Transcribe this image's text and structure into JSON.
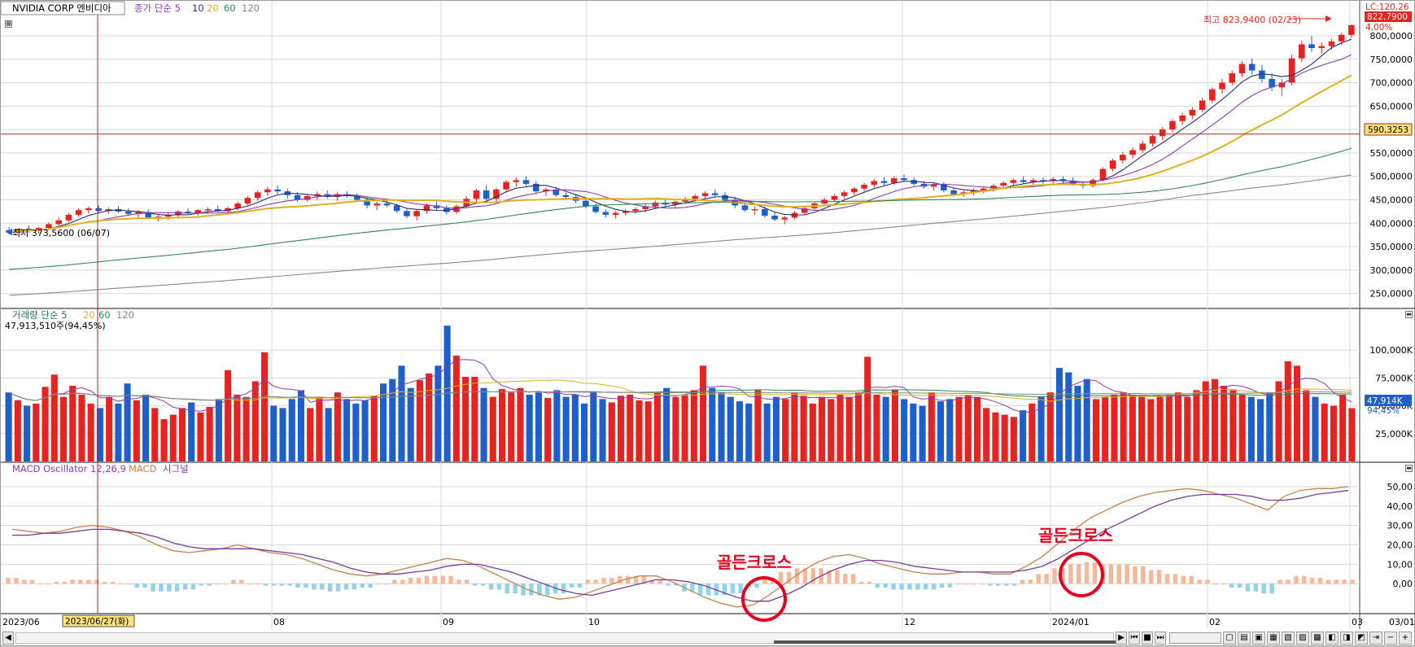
{
  "colors": {
    "up": "#e8231f",
    "down": "#1e5fd0",
    "ma5": "#2a2e6e",
    "ma10": "#8b3db0",
    "ma20": "#e0b020",
    "ma60": "#2e8b57",
    "ma120": "#888888",
    "osc_pos": "#f5b89a",
    "osc_neg": "#8fd3ee",
    "macd": "#c8824a",
    "signal": "#7a3a9a",
    "annotation": "#e8001c",
    "grid": "#d8d8d8",
    "crosshair": "#b22222",
    "hline": "#a52a2a"
  },
  "price_legend": {
    "title": "NVIDIA CORP  엔비디아",
    "ma_label": "종가 단순 5",
    "p10": "10",
    "p20": "20",
    "p60": "60",
    "p120": "120"
  },
  "volume_legend": {
    "title": "거래량 단순 5",
    "p20": "20",
    "p60": "60",
    "p120": "120",
    "info": "47,913,510주(94,45%)"
  },
  "macd_legend": {
    "title": "MACD Oscillator 12,26,9",
    "macd": "MACD",
    "signal": "시그널"
  },
  "price_axis": {
    "ticks": [
      "800,0000",
      "750,0000",
      "700,0000",
      "650,0000",
      "600,0000",
      "550,0000",
      "500,0000",
      "450,0000",
      "400,0000",
      "350,0000",
      "300,0000",
      "250,0000"
    ],
    "lc": "LC:120,26",
    "current": "822,7900",
    "pct": "4,00%",
    "hline_value": "590,3253"
  },
  "volume_axis": {
    "ticks": [
      "100,000K",
      "75,000K",
      "50,000K",
      "25,000K"
    ],
    "current": "47,914K",
    "pct": "94,45%"
  },
  "macd_axis": {
    "ticks": [
      "50,00",
      "40,00",
      "30,00",
      "20,00",
      "10,00",
      "0,00"
    ]
  },
  "annotations": {
    "high": "최고 823,9400 (02/23)",
    "low": "최저 373,5600 (06/07)",
    "golden1": "골든크로스",
    "golden2": "골든크로스"
  },
  "x_axis": {
    "labels": [
      "2023/06",
      "08",
      "09",
      "10",
      "12",
      "2024/01",
      "02",
      "03",
      "03/01"
    ],
    "crosshair_label": "2023/06/27(화)"
  },
  "chart_data": [
    {
      "type": "candlestick",
      "title": "NVIDIA CORP  엔비디아",
      "ylim": [
        225,
        840
      ],
      "moving_averages": [
        "5",
        "10",
        "20",
        "60",
        "120"
      ],
      "highest": {
        "value": 823.94,
        "date": "02/23"
      },
      "lowest": {
        "value": 373.56,
        "date": "06/07"
      },
      "ohlc": [
        [
          385,
          392,
          376,
          380
        ],
        [
          380,
          390,
          378,
          388
        ],
        [
          388,
          395,
          380,
          384
        ],
        [
          384,
          392,
          378,
          390
        ],
        [
          390,
          402,
          386,
          398
        ],
        [
          398,
          412,
          395,
          406
        ],
        [
          406,
          422,
          402,
          418
        ],
        [
          418,
          432,
          414,
          428
        ],
        [
          428,
          436,
          420,
          432
        ],
        [
          432,
          438,
          424,
          426
        ],
        [
          426,
          434,
          420,
          430
        ],
        [
          430,
          436,
          422,
          425
        ],
        [
          425,
          432,
          416,
          420
        ],
        [
          420,
          428,
          412,
          424
        ],
        [
          424,
          430,
          408,
          410
        ],
        [
          410,
          418,
          404,
          414
        ],
        [
          414,
          422,
          408,
          418
        ],
        [
          418,
          428,
          414,
          425
        ],
        [
          425,
          432,
          418,
          422
        ],
        [
          422,
          430,
          416,
          428
        ],
        [
          428,
          434,
          420,
          430
        ],
        [
          430,
          438,
          424,
          426
        ],
        [
          426,
          436,
          420,
          432
        ],
        [
          432,
          446,
          428,
          442
        ],
        [
          442,
          458,
          438,
          454
        ],
        [
          454,
          470,
          448,
          466
        ],
        [
          466,
          478,
          458,
          472
        ],
        [
          472,
          480,
          462,
          468
        ],
        [
          468,
          474,
          452,
          460
        ],
        [
          460,
          466,
          446,
          450
        ],
        [
          450,
          462,
          446,
          458
        ],
        [
          458,
          468,
          450,
          462
        ],
        [
          462,
          470,
          452,
          456
        ],
        [
          456,
          466,
          448,
          462
        ],
        [
          462,
          468,
          454,
          458
        ],
        [
          458,
          464,
          446,
          450
        ],
        [
          450,
          456,
          432,
          438
        ],
        [
          438,
          446,
          428,
          442
        ],
        [
          442,
          450,
          434,
          438
        ],
        [
          438,
          442,
          422,
          426
        ],
        [
          426,
          432,
          410,
          415
        ],
        [
          415,
          430,
          406,
          426
        ],
        [
          426,
          442,
          420,
          438
        ],
        [
          438,
          446,
          426,
          432
        ],
        [
          432,
          438,
          418,
          424
        ],
        [
          424,
          440,
          420,
          436
        ],
        [
          436,
          458,
          432,
          452
        ],
        [
          452,
          474,
          446,
          470
        ],
        [
          470,
          482,
          448,
          452
        ],
        [
          452,
          476,
          446,
          472
        ],
        [
          472,
          492,
          466,
          488
        ],
        [
          488,
          498,
          478,
          492
        ],
        [
          492,
          500,
          480,
          484
        ],
        [
          484,
          490,
          462,
          468
        ],
        [
          468,
          476,
          458,
          472
        ],
        [
          472,
          478,
          456,
          460
        ],
        [
          460,
          466,
          450,
          456
        ],
        [
          456,
          462,
          442,
          448
        ],
        [
          448,
          452,
          432,
          436
        ],
        [
          436,
          442,
          420,
          424
        ],
        [
          424,
          430,
          412,
          418
        ],
        [
          418,
          426,
          410,
          422
        ],
        [
          422,
          430,
          416,
          426
        ],
        [
          426,
          434,
          420,
          430
        ],
        [
          430,
          440,
          424,
          436
        ],
        [
          436,
          448,
          430,
          444
        ],
        [
          444,
          450,
          436,
          440
        ],
        [
          440,
          448,
          432,
          446
        ],
        [
          446,
          456,
          440,
          452
        ],
        [
          452,
          462,
          446,
          458
        ],
        [
          458,
          468,
          452,
          464
        ],
        [
          464,
          472,
          456,
          460
        ],
        [
          460,
          466,
          446,
          450
        ],
        [
          450,
          456,
          432,
          438
        ],
        [
          438,
          444,
          424,
          428
        ],
        [
          428,
          436,
          418,
          430
        ],
        [
          430,
          436,
          412,
          416
        ],
        [
          416,
          424,
          404,
          408
        ],
        [
          408,
          416,
          398,
          412
        ],
        [
          412,
          426,
          408,
          422
        ],
        [
          422,
          436,
          418,
          432
        ],
        [
          432,
          446,
          428,
          442
        ],
        [
          442,
          454,
          438,
          450
        ],
        [
          450,
          462,
          446,
          458
        ],
        [
          458,
          470,
          452,
          466
        ],
        [
          466,
          478,
          460,
          474
        ],
        [
          474,
          486,
          468,
          482
        ],
        [
          482,
          494,
          476,
          490
        ],
        [
          490,
          498,
          480,
          486
        ],
        [
          486,
          500,
          482,
          496
        ],
        [
          496,
          504,
          488,
          492
        ],
        [
          492,
          498,
          480,
          484
        ],
        [
          484,
          490,
          474,
          478
        ],
        [
          478,
          486,
          470,
          482
        ],
        [
          482,
          488,
          466,
          470
        ],
        [
          470,
          476,
          458,
          462
        ],
        [
          462,
          470,
          456,
          466
        ],
        [
          466,
          474,
          460,
          470
        ],
        [
          470,
          478,
          464,
          474
        ],
        [
          474,
          484,
          468,
          480
        ],
        [
          480,
          490,
          474,
          486
        ],
        [
          486,
          496,
          480,
          492
        ],
        [
          492,
          500,
          484,
          488
        ],
        [
          488,
          496,
          480,
          492
        ],
        [
          492,
          498,
          484,
          490
        ],
        [
          490,
          498,
          482,
          494
        ],
        [
          494,
          500,
          486,
          490
        ],
        [
          490,
          498,
          480,
          484
        ],
        [
          484,
          490,
          474,
          480
        ],
        [
          480,
          496,
          476,
          492
        ],
        [
          492,
          520,
          488,
          516
        ],
        [
          516,
          538,
          510,
          534
        ],
        [
          534,
          552,
          528,
          546
        ],
        [
          546,
          562,
          538,
          556
        ],
        [
          556,
          576,
          550,
          570
        ],
        [
          570,
          590,
          564,
          586
        ],
        [
          586,
          606,
          578,
          600
        ],
        [
          600,
          622,
          594,
          618
        ],
        [
          618,
          636,
          610,
          630
        ],
        [
          630,
          648,
          622,
          642
        ],
        [
          642,
          668,
          636,
          662
        ],
        [
          662,
          690,
          656,
          686
        ],
        [
          686,
          708,
          676,
          700
        ],
        [
          700,
          726,
          694,
          720
        ],
        [
          720,
          746,
          712,
          740
        ],
        [
          740,
          752,
          718,
          726
        ],
        [
          726,
          738,
          700,
          708
        ],
        [
          708,
          720,
          682,
          690
        ],
        [
          690,
          708,
          672,
          700
        ],
        [
          700,
          760,
          694,
          752
        ],
        [
          752,
          790,
          744,
          782
        ],
        [
          782,
          800,
          766,
          774
        ],
        [
          774,
          786,
          762,
          778
        ],
        [
          778,
          794,
          770,
          788
        ],
        [
          788,
          806,
          780,
          802
        ],
        [
          802,
          823.94,
          796,
          822.79
        ]
      ]
    },
    {
      "type": "bar",
      "title": "거래량 단순 5",
      "ylabel": "",
      "ylim": [
        0,
        125000
      ],
      "values": [
        62000,
        55000,
        50000,
        52000,
        67000,
        78000,
        58000,
        68000,
        60000,
        52000,
        48000,
        58000,
        52000,
        70000,
        55000,
        60000,
        48000,
        38000,
        42000,
        48000,
        53000,
        44000,
        49000,
        56000,
        82000,
        60000,
        58000,
        72000,
        98000,
        50000,
        48000,
        56000,
        64000,
        48000,
        58000,
        48000,
        62000,
        56000,
        52000,
        55000,
        59000,
        70000,
        74000,
        86000,
        66000,
        73000,
        79000,
        86000,
        122000,
        95000,
        76000,
        76000,
        66000,
        58000,
        65000,
        62000,
        66000,
        60000,
        62000,
        57000,
        64000,
        58000,
        60000,
        52000,
        62000,
        56000,
        53000,
        59000,
        60000,
        55000,
        54000,
        62000,
        66000,
        58000,
        60000,
        64000,
        86000,
        66000,
        62000,
        58000,
        54000,
        52000,
        64000,
        52000,
        58000,
        56000,
        62000,
        59000,
        52000,
        58000,
        56000,
        60000,
        58000,
        62000,
        94000,
        60000,
        58000,
        64000,
        56000,
        52000,
        50000,
        62000,
        54000,
        56000,
        58000,
        60000,
        58000,
        48000,
        44000,
        42000,
        40000,
        46000,
        52000,
        58000,
        62000,
        84000,
        80000,
        68000,
        74000,
        56000,
        58000,
        60000,
        62000,
        60000,
        58000,
        56000,
        58000,
        60000,
        62000,
        58000,
        64000,
        72000,
        74000,
        68000,
        64000,
        60000,
        58000,
        56000,
        62000,
        72000,
        90000,
        86000,
        64000,
        58000,
        52000,
        50000,
        60000,
        47914
      ],
      "moving_averages": [
        "5",
        "20",
        "60",
        "120"
      ]
    },
    {
      "type": "line",
      "title": "MACD Oscillator 12,26,9",
      "ylim": [
        -15,
        55
      ],
      "series": [
        {
          "name": "MACD",
          "values": [
            28,
            27,
            26,
            27,
            29,
            30,
            29,
            27,
            24,
            20,
            17,
            16,
            17,
            18,
            20,
            18,
            16,
            15,
            13,
            10,
            7,
            5,
            4,
            5,
            7,
            9,
            11,
            13,
            12,
            9,
            5,
            1,
            -3,
            -6,
            -8,
            -7,
            -4,
            -1,
            2,
            4,
            4,
            1,
            -3,
            -7,
            -10,
            -12,
            -11,
            -6,
            0,
            6,
            11,
            14,
            15,
            13,
            10,
            8,
            6,
            5,
            5,
            6,
            6,
            5,
            5,
            9,
            14,
            21,
            28,
            34,
            38,
            42,
            45,
            47,
            48,
            49,
            48,
            46,
            44,
            41,
            38,
            45,
            48,
            49,
            49,
            50
          ]
        },
        {
          "name": "시그널",
          "values": [
            25,
            25,
            26,
            26,
            27,
            28,
            28,
            27,
            26,
            24,
            21,
            19,
            18,
            18,
            18,
            18,
            17,
            16,
            15,
            13,
            11,
            8,
            6,
            5,
            5,
            6,
            7,
            9,
            10,
            10,
            8,
            6,
            3,
            0,
            -3,
            -5,
            -6,
            -4,
            -2,
            0,
            2,
            2,
            1,
            -1,
            -4,
            -7,
            -9,
            -9,
            -6,
            -2,
            3,
            7,
            10,
            12,
            12,
            11,
            9,
            8,
            7,
            6,
            6,
            6,
            6,
            7,
            9,
            13,
            18,
            23,
            28,
            32,
            36,
            40,
            43,
            45,
            46,
            46,
            46,
            45,
            43,
            43,
            44,
            46,
            47,
            48
          ]
        },
        {
          "name": "MACD Oscillator",
          "values": [
            3,
            2,
            0,
            1,
            2,
            2,
            1,
            0,
            -2,
            -4,
            -4,
            -3,
            -1,
            0,
            2,
            0,
            -1,
            -1,
            -2,
            -3,
            -4,
            -3,
            -2,
            0,
            2,
            3,
            4,
            4,
            2,
            -1,
            -3,
            -5,
            -6,
            -6,
            -5,
            -2,
            2,
            3,
            4,
            4,
            2,
            -1,
            -4,
            -6,
            -6,
            -5,
            -2,
            3,
            6,
            8,
            8,
            7,
            5,
            1,
            -2,
            -3,
            -3,
            -3,
            -2,
            0,
            0,
            -1,
            -1,
            2,
            5,
            8,
            10,
            11,
            10,
            10,
            9,
            7,
            5,
            4,
            2,
            0,
            -2,
            -4,
            -5,
            2,
            4,
            3,
            2,
            2
          ]
        }
      ]
    }
  ]
}
